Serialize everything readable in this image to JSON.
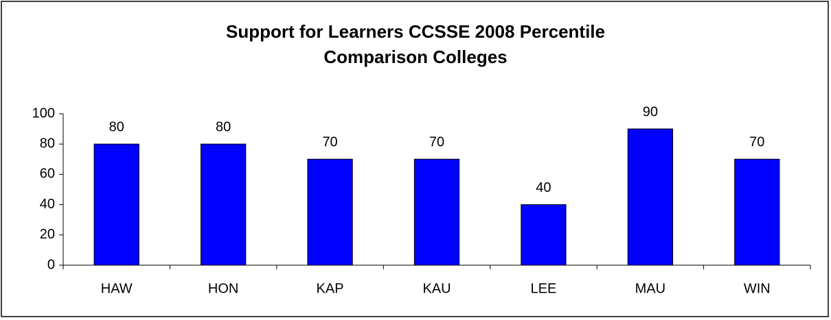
{
  "chart_data": {
    "type": "bar",
    "title": "Support for Learners CCSSE 2008 Percentile Comparison Colleges",
    "categories": [
      "HAW",
      "HON",
      "KAP",
      "KAU",
      "LEE",
      "MAU",
      "WIN"
    ],
    "values": [
      80,
      80,
      70,
      70,
      40,
      90,
      70
    ],
    "color": "#0000ff",
    "ylim": [
      0,
      100
    ],
    "yticks": [
      0,
      20,
      40,
      60,
      80,
      100
    ],
    "grid": false
  }
}
